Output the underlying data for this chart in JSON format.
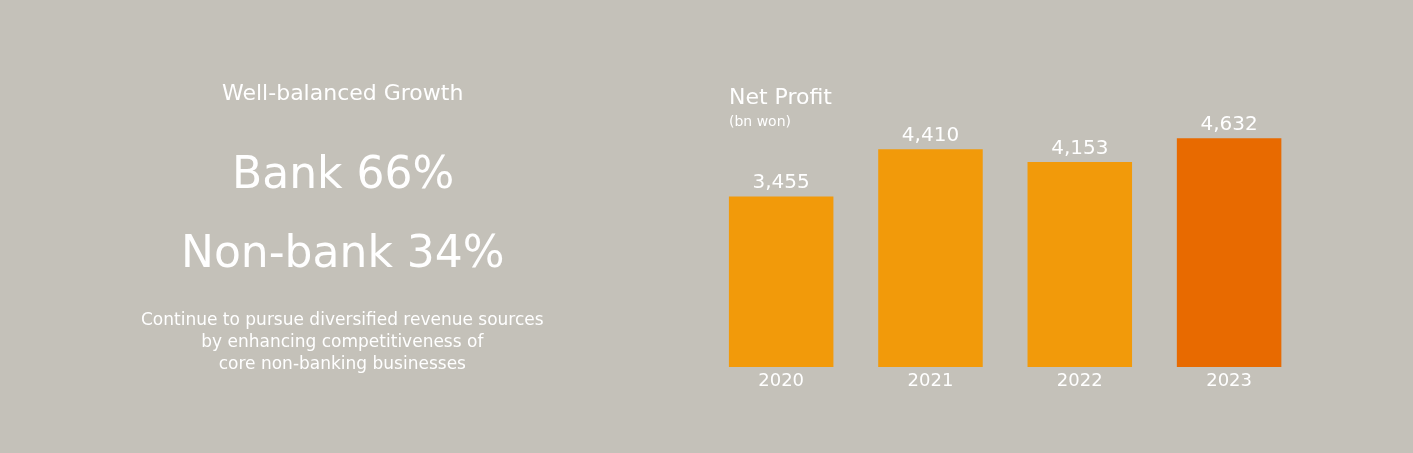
{
  "chart_data": [
    {
      "type": "other",
      "title": "Well-balanced Growth",
      "annotations": [
        "Bank 66%",
        "Non-bank 34%",
        "Continue to pursue diversified revenue sources\nby enhancing competitiveness of\ncore non-banking businesses"
      ]
    },
    {
      "type": "bar",
      "title": "Net Profit",
      "subtitle": "(bn won)",
      "categories": [
        "2020",
        "2021",
        "2022",
        "2023"
      ],
      "values": [
        3455,
        4410,
        4153,
        4632
      ],
      "colors": [
        "#f29a0a",
        "#f29a0a",
        "#f29a0a",
        "#e86a00"
      ],
      "value_labels": [
        "3,455",
        "4,410",
        "4,153",
        "4,632"
      ]
    }
  ]
}
